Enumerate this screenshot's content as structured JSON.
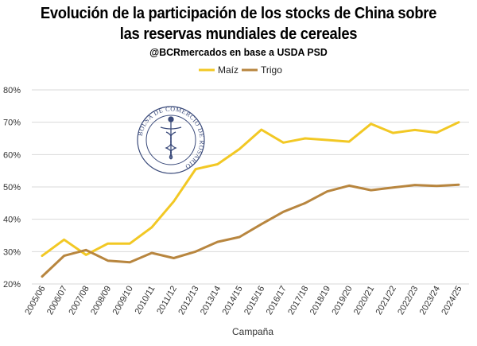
{
  "header": {
    "title_line1": "Evolución de la participación de los stocks de China sobre",
    "title_line2": "las reservas mundiales de cereales",
    "subtitle": "@BCRmercados en base a USDA PSD"
  },
  "logo": {
    "text": "BOLSA DE COMERCIO DE ROSARIO"
  },
  "chart_data": {
    "type": "line",
    "title": "Evolución de la participación de los stocks de China sobre las reservas mundiales de cereales",
    "subtitle": "@BCRmercados en base a USDA PSD",
    "xlabel": "Campaña",
    "ylabel": "",
    "categories": [
      "2005/06",
      "2006/07",
      "2007/08",
      "2008/09",
      "2009/10",
      "2010/11",
      "2011/12",
      "2012/13",
      "2013/14",
      "2014/15",
      "2015/16",
      "2016/17",
      "2017/18",
      "2018/19",
      "2019/20",
      "2020/21",
      "2021/22",
      "2022/23",
      "2023/24",
      "2024/25"
    ],
    "ylim": [
      20,
      80
    ],
    "yticks": [
      "20%",
      "30%",
      "40%",
      "50%",
      "60%",
      "70%",
      "80%"
    ],
    "grid": true,
    "legend_position": "top-center",
    "series": [
      {
        "name": "Maíz",
        "color": "#F2C824",
        "values": [
          28.7,
          33.7,
          29.0,
          32.5,
          32.5,
          37.5,
          45.5,
          55.5,
          57.0,
          61.7,
          67.7,
          63.7,
          65.0,
          64.5,
          64.0,
          69.5,
          66.7,
          67.6,
          66.8,
          70.0
        ]
      },
      {
        "name": "Trigo",
        "color": "#B8863F",
        "values": [
          22.3,
          28.7,
          30.5,
          27.2,
          26.7,
          29.6,
          28.0,
          30.0,
          33.0,
          34.5,
          38.5,
          42.3,
          45.0,
          48.6,
          50.4,
          49.0,
          49.8,
          50.6,
          50.3,
          50.7
        ]
      }
    ]
  }
}
